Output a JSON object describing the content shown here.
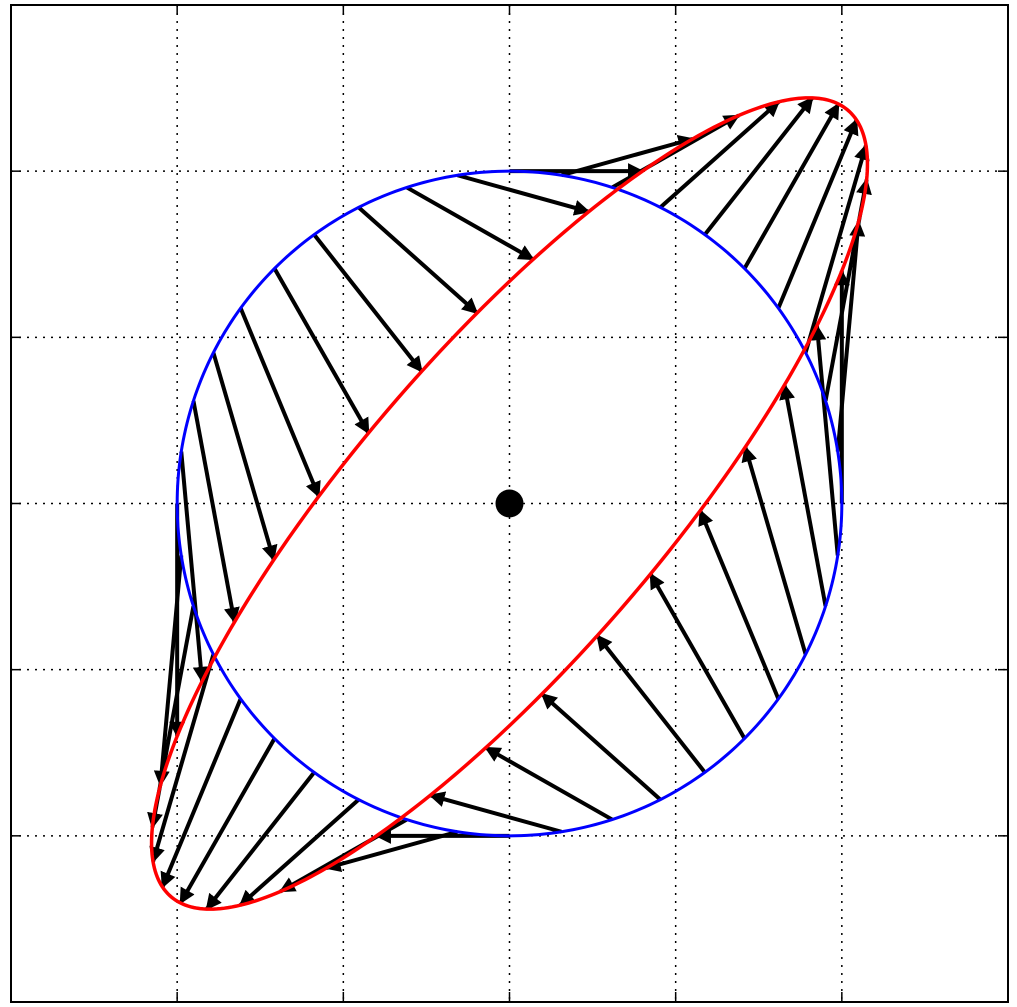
{
  "chart_data": {
    "type": "vector-field",
    "title": "",
    "xlabel": "",
    "ylabel": "",
    "xlim": [
      -3,
      3
    ],
    "ylim": [
      -3,
      3
    ],
    "grid": true,
    "tick_labels": false,
    "center_point": [
      0,
      0
    ],
    "circle": {
      "name": "",
      "color": "#0000ff",
      "center": [
        0,
        0
      ],
      "radius": 2
    },
    "mapping": {
      "name": "",
      "color": "#ff0000",
      "matrix": [
        [
          1.0,
          0.4
        ],
        [
          0.7,
          1.0
        ]
      ]
    },
    "arrows": {
      "count": 40,
      "color": "#000000",
      "from": "circle",
      "to": "mapped-ellipse"
    },
    "colors": {
      "axes": "#000000",
      "grid": "#000000",
      "background": "#ffffff"
    }
  }
}
